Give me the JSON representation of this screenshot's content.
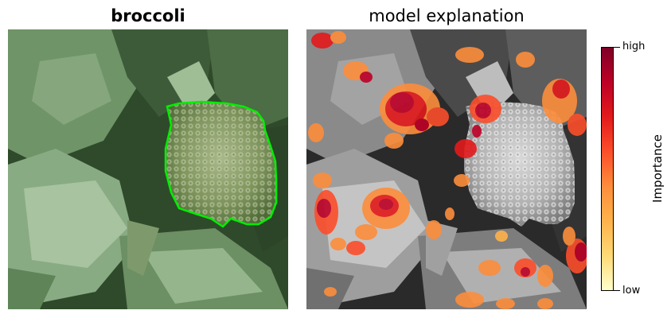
{
  "left_panel": {
    "title": "broccoli",
    "segment_outline_color": "#00ee00"
  },
  "right_panel": {
    "title": "model explanation"
  },
  "colorbar": {
    "label": "Importance",
    "high_label": "high",
    "low_label": "low",
    "colors": [
      "#7f0026",
      "#bd0026",
      "#e31a1c",
      "#fc4e2a",
      "#fd8d3c",
      "#feb24c",
      "#fed976",
      "#ffffcc"
    ]
  }
}
